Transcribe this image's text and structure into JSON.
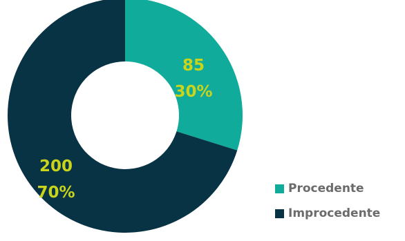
{
  "chart_data": {
    "type": "pie",
    "donut": true,
    "categories": [
      "Procedente",
      "Improcedente"
    ],
    "values": [
      85,
      200
    ],
    "percent_labels": [
      "30%",
      "70%"
    ],
    "value_labels": [
      "85",
      "200"
    ],
    "colors": [
      "#10ab9b",
      "#083344"
    ],
    "label_color": "#c9d41c",
    "legend_position": "bottom-right"
  },
  "legend": {
    "items": [
      {
        "label": "Procedente",
        "color": "#10ab9b"
      },
      {
        "label": "Improcedente",
        "color": "#083344"
      }
    ]
  }
}
